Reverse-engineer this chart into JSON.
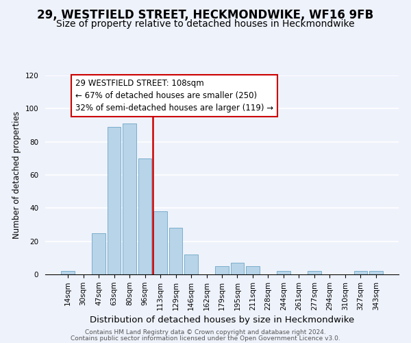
{
  "title": "29, WESTFIELD STREET, HECKMONDWIKE, WF16 9FB",
  "subtitle": "Size of property relative to detached houses in Heckmondwike",
  "xlabel": "Distribution of detached houses by size in Heckmondwike",
  "ylabel": "Number of detached properties",
  "bar_labels": [
    "14sqm",
    "30sqm",
    "47sqm",
    "63sqm",
    "80sqm",
    "96sqm",
    "113sqm",
    "129sqm",
    "146sqm",
    "162sqm",
    "179sqm",
    "195sqm",
    "211sqm",
    "228sqm",
    "244sqm",
    "261sqm",
    "277sqm",
    "294sqm",
    "310sqm",
    "327sqm",
    "343sqm"
  ],
  "bar_values": [
    2,
    0,
    25,
    89,
    91,
    70,
    38,
    28,
    12,
    0,
    5,
    7,
    5,
    0,
    2,
    0,
    2,
    0,
    0,
    2,
    2
  ],
  "bar_color": "#b8d4e8",
  "bar_edge_color": "#7aaecc",
  "red_line_x": 5.5,
  "marker_label": "29 WESTFIELD STREET: 108sqm",
  "annotation_line1": "← 67% of detached houses are smaller (250)",
  "annotation_line2": "32% of semi-detached houses are larger (119) →",
  "marker_color": "#cc0000",
  "ylim": [
    0,
    120
  ],
  "yticks": [
    0,
    20,
    40,
    60,
    80,
    100,
    120
  ],
  "footer1": "Contains HM Land Registry data © Crown copyright and database right 2024.",
  "footer2": "Contains public sector information licensed under the Open Government Licence v3.0.",
  "title_fontsize": 12,
  "subtitle_fontsize": 10,
  "xlabel_fontsize": 9.5,
  "ylabel_fontsize": 8.5,
  "tick_fontsize": 7.5,
  "footer_fontsize": 6.5,
  "annotation_fontsize": 8.5,
  "background_color": "#eef2fb"
}
